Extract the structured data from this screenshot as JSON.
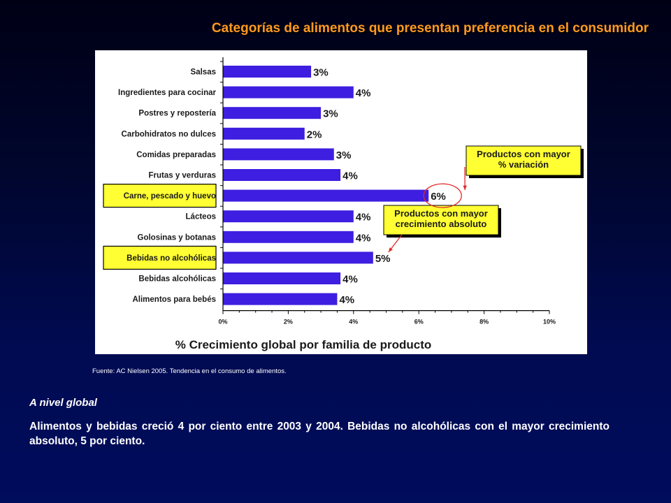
{
  "slide": {
    "title": "Categorías de alimentos que presentan preferencia en el consumidor",
    "source": "Fuente:  AC Nielsen 2005.  Tendencia en el consumo de alimentos.",
    "section_heading": "A nivel global",
    "body": "Alimentos y bebidas creció 4 por ciento entre 2003 y 2004.   Bebidas no alcohólicas con el mayor crecimiento absoluto, 5 por ciento."
  },
  "colors": {
    "bar": "#3e1ee0",
    "highlight": "#ffff33",
    "title": "#ff9a22",
    "circle": "#e02828"
  },
  "chart_data": {
    "type": "bar",
    "orientation": "horizontal",
    "xlabel": "% Crecimiento global por familia de producto",
    "xlim": [
      0,
      10
    ],
    "xticks": [
      "0%",
      "2%",
      "4%",
      "6%",
      "8%",
      "10%"
    ],
    "categories": [
      "Salsas",
      "Ingredientes para cocinar",
      "Postres y repostería",
      "Carbohidratos no dulces",
      "Comidas preparadas",
      "Frutas y verduras",
      "Carne, pescado y huevo",
      "Lácteos",
      "Golosinas y botanas",
      "Bebidas no alcohólicas",
      "Bebidas alcohólicas",
      "Alimentos para bebés"
    ],
    "values": [
      2.7,
      4.0,
      3.0,
      2.5,
      3.4,
      3.6,
      6.3,
      4.0,
      4.0,
      4.6,
      3.6,
      3.5
    ],
    "value_labels": [
      "3%",
      "4%",
      "3%",
      "2%",
      "3%",
      "4%",
      "6%",
      "4%",
      "4%",
      "5%",
      "4%",
      "4%"
    ],
    "highlighted": [
      "Carne, pescado y huevo",
      "Bebidas no alcohólicas"
    ],
    "annotations": [
      {
        "lines": [
          "Productos con mayor",
          "% variación"
        ],
        "target": "Carne, pescado y huevo"
      },
      {
        "lines": [
          "Productos con mayor",
          "crecimiento absoluto"
        ],
        "target": "Bebidas no alcohólicas"
      }
    ],
    "grid": false,
    "legend": "none"
  }
}
